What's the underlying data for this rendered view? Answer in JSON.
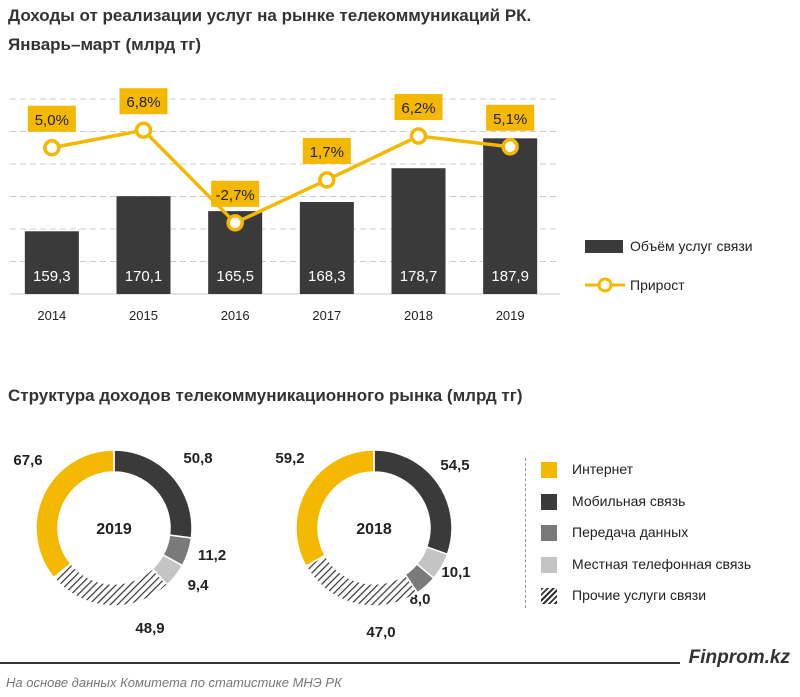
{
  "chart_data": [
    {
      "type": "bar+line",
      "title": "Доходы от реализации услуг на рынке телекоммуникаций РК.",
      "subtitle": "Январь–март (млрд тг)",
      "categories": [
        "2014",
        "2015",
        "2016",
        "2017",
        "2018",
        "2019"
      ],
      "series": [
        {
          "name": "Объём услуг связи",
          "type": "bar",
          "values": [
            159.3,
            170.1,
            165.5,
            168.3,
            178.7,
            187.9
          ],
          "labels": [
            "159,3",
            "170,1",
            "165,5",
            "168,3",
            "178,7",
            "187,9"
          ],
          "color": "#3a3a3a"
        },
        {
          "name": "Прирост",
          "type": "line",
          "values": [
            5.0,
            6.8,
            -2.7,
            1.7,
            6.2,
            5.1
          ],
          "labels": [
            "5,0%",
            "6,8%",
            "-2,7%",
            "1,7%",
            "6,2%",
            "5,1%"
          ],
          "color": "#f5b800"
        }
      ],
      "ylim": [
        140,
        200
      ],
      "y2lim": [
        -10,
        10
      ],
      "grid": true,
      "legend": "right"
    },
    {
      "type": "pie",
      "title": "Структура доходов телекоммуникационного рынка (млрд тг)",
      "legend": "right",
      "categories": [
        {
          "name": "Интернет",
          "color": "#f5b800"
        },
        {
          "name": "Мобильная связь",
          "color": "#3a3a3a"
        },
        {
          "name": "Передача данных",
          "color": "#7a7a7a"
        },
        {
          "name": "Местная телефонная связь",
          "color": "#c4c4c4"
        },
        {
          "name": "Прочие услуги связи",
          "color": "hatch"
        }
      ],
      "donuts": [
        {
          "center_label": "2019",
          "slices": [
            {
              "category": "Мобильная связь",
              "value": 50.8,
              "label": "50,8"
            },
            {
              "category": "Передача данных",
              "value": 11.2,
              "label": "11,2"
            },
            {
              "category": "Местная телефонная связь",
              "value": 9.4,
              "label": "9,4"
            },
            {
              "category": "Прочие услуги связи",
              "value": 48.9,
              "label": "48,9"
            },
            {
              "category": "Интернет",
              "value": 67.6,
              "label": "67,6"
            }
          ]
        },
        {
          "center_label": "2018",
          "slices": [
            {
              "category": "Мобильная связь",
              "value": 54.5,
              "label": "54,5"
            },
            {
              "category": "Местная телефонная связь",
              "value": 10.1,
              "label": "10,1"
            },
            {
              "category": "Передача данных",
              "value": 8.0,
              "label": "8,0"
            },
            {
              "category": "Прочие услуги связи",
              "value": 47.0,
              "label": "47,0"
            },
            {
              "category": "Интернет",
              "value": 59.2,
              "label": "59,2"
            }
          ]
        }
      ]
    }
  ],
  "footer": {
    "brand": "Finprom.kz",
    "source": "На основе данных  Комитета по статистике МНЭ РК"
  }
}
